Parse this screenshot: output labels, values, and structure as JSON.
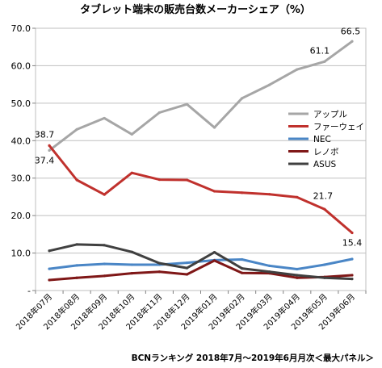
{
  "chart_data": {
    "type": "line",
    "title": "タブレット端末の販売台数メーカーシェア（%）",
    "source_note": "BCNランキング 2018年7月～2019年6月月次＜最大パネル＞",
    "categories": [
      "2018年07月",
      "2018年08月",
      "2018年09月",
      "2018年10月",
      "2018年11月",
      "2018年12月",
      "2019年01月",
      "2019年02月",
      "2019年03月",
      "2019年04月",
      "2019年05月",
      "2019年06月"
    ],
    "ylim": [
      0,
      70
    ],
    "yticks": [
      "-",
      "10.0",
      "20.0",
      "30.0",
      "40.0",
      "50.0",
      "60.0",
      "70.0"
    ],
    "grid": true,
    "legend_position": "right",
    "series": [
      {
        "name": "アップル",
        "color": "#a6a6a6",
        "values": [
          37.4,
          43.0,
          46.0,
          41.7,
          47.5,
          49.7,
          43.5,
          51.3,
          54.9,
          59.0,
          61.1,
          66.5
        ],
        "labels": [
          {
            "index": 0,
            "text": "37.4",
            "anchor": "below-left"
          },
          {
            "index": 10,
            "text": "61.1",
            "anchor": "above-left"
          },
          {
            "index": 11,
            "text": "66.5",
            "anchor": "above"
          }
        ]
      },
      {
        "name": "ファーウェイ",
        "color": "#c0312d",
        "values": [
          38.7,
          29.5,
          25.6,
          31.4,
          29.6,
          29.5,
          26.5,
          26.1,
          25.7,
          24.9,
          21.7,
          15.4
        ],
        "labels": [
          {
            "index": 0,
            "text": "38.7",
            "anchor": "above-left"
          },
          {
            "index": 10,
            "text": "21.7",
            "anchor": "right"
          },
          {
            "index": 11,
            "text": "15.4",
            "anchor": "below"
          }
        ]
      },
      {
        "name": "NEC",
        "color": "#4a86c6",
        "values": [
          5.8,
          6.7,
          7.1,
          6.9,
          6.9,
          7.4,
          8.1,
          8.3,
          6.6,
          5.7,
          6.9,
          8.4
        ],
        "labels": []
      },
      {
        "name": "レノボ",
        "color": "#7f1717",
        "values": [
          2.8,
          3.4,
          3.9,
          4.6,
          5.0,
          4.3,
          8.0,
          4.7,
          4.6,
          3.4,
          3.6,
          4.1
        ],
        "labels": []
      },
      {
        "name": "ASUS",
        "color": "#404040",
        "values": [
          10.6,
          12.3,
          12.1,
          10.3,
          7.3,
          6.0,
          10.2,
          5.9,
          5.0,
          4.1,
          3.4,
          3.1
        ],
        "labels": []
      }
    ]
  }
}
